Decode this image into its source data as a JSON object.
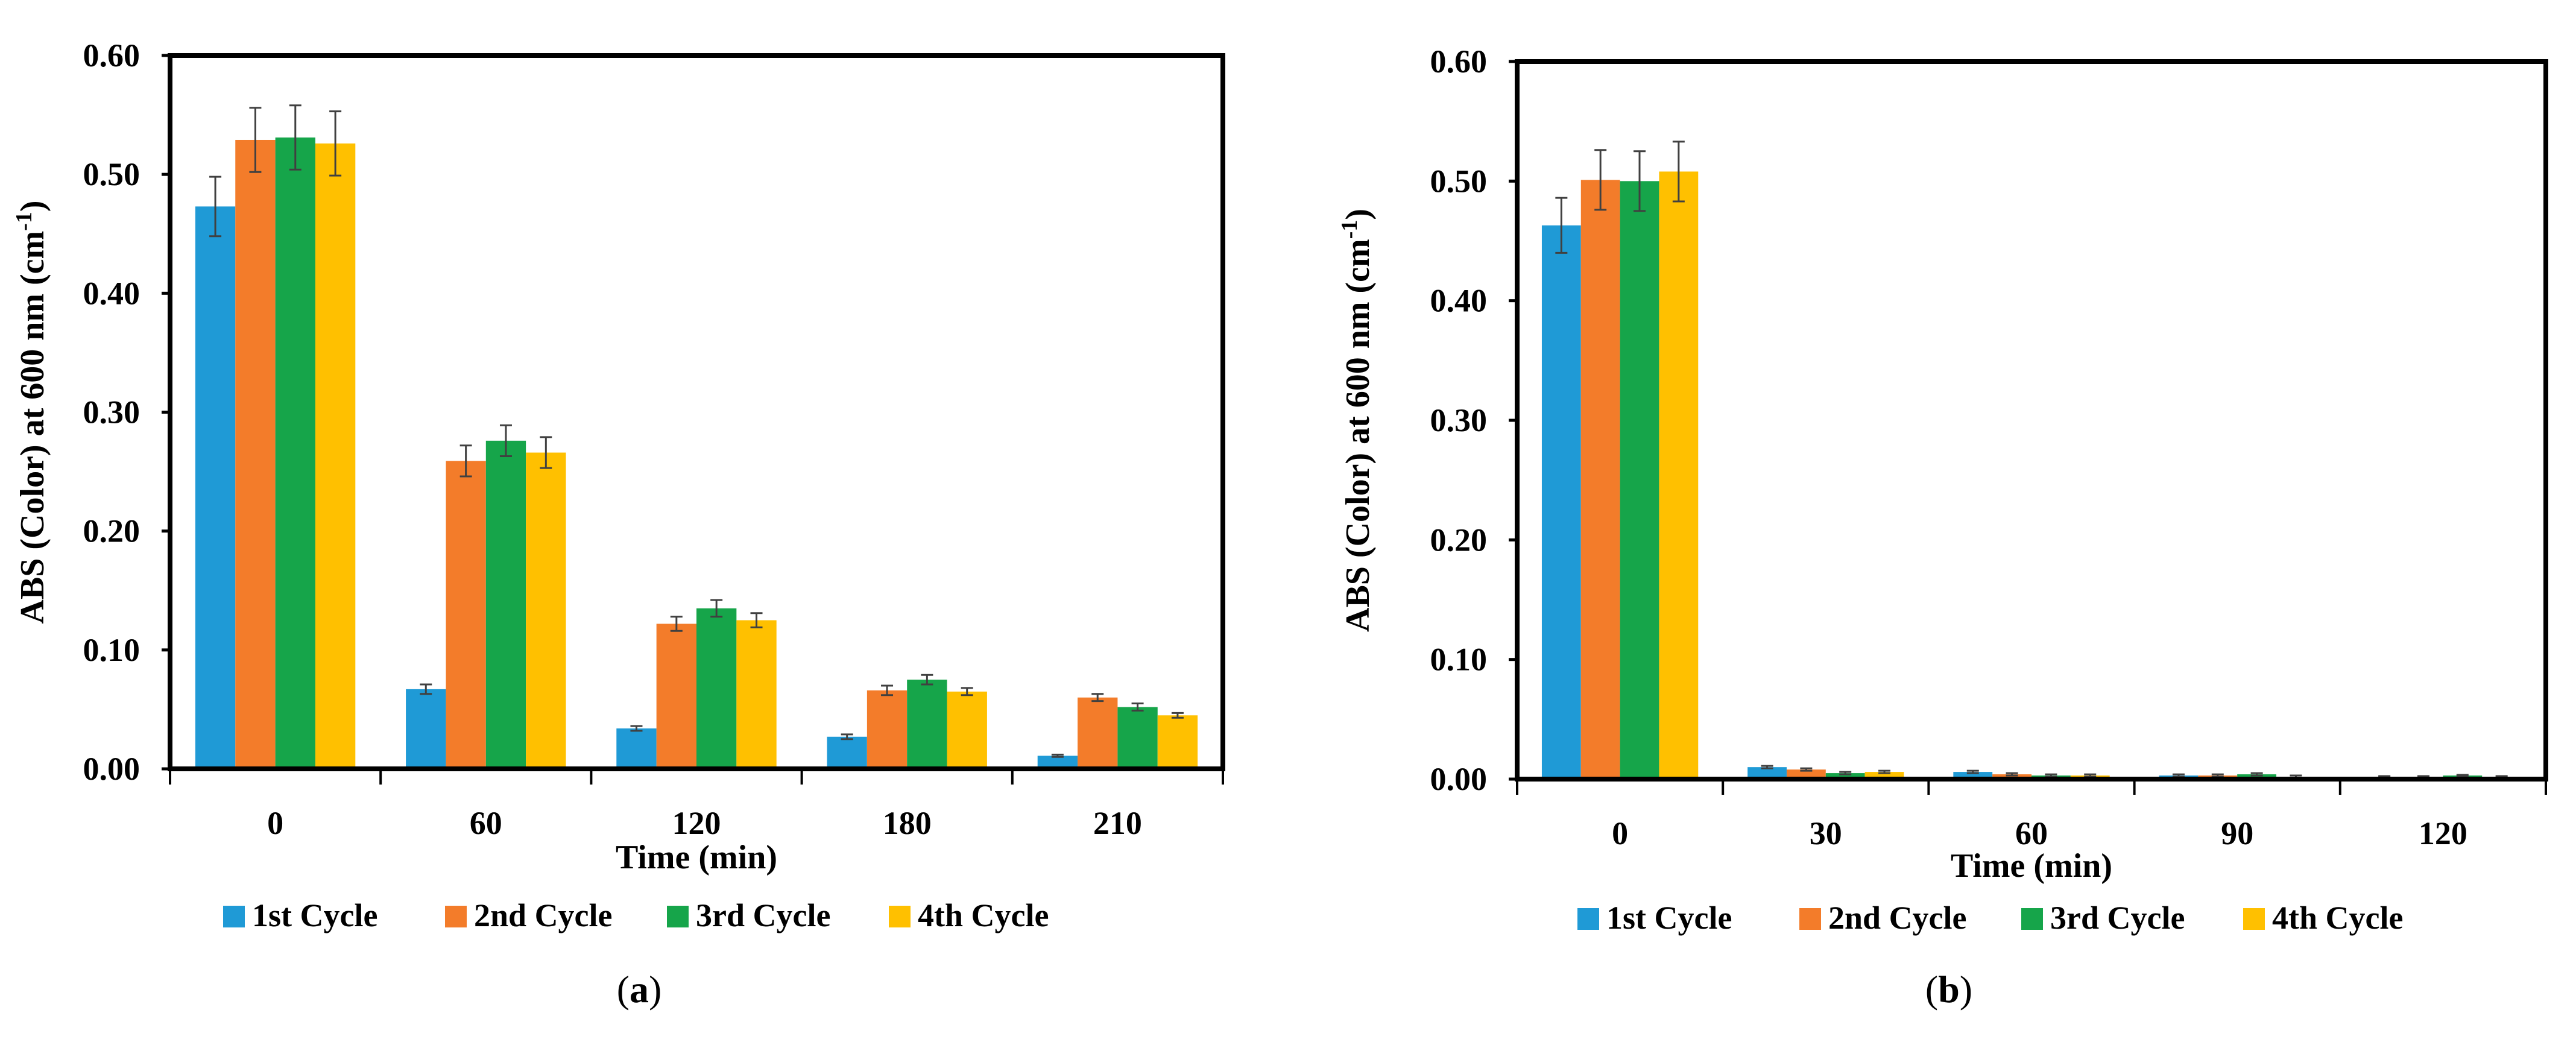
{
  "figure": {
    "panels": [
      {
        "label_prefix": "(",
        "letter": "a",
        "label_suffix": ")"
      },
      {
        "label_prefix": "(",
        "letter": "b",
        "label_suffix": ")"
      }
    ]
  },
  "colors": {
    "series": [
      "#1f9ad6",
      "#f37c2a",
      "#16a54a",
      "#ffc000"
    ],
    "axis": "#000000",
    "errorbar": "#404040"
  },
  "chart_data": [
    {
      "type": "bar",
      "panel": "a",
      "title": "",
      "xlabel": "Time (min)",
      "ylabel": "ABS (Color)  at 600 nm (cm",
      "ylabel_sup": "-1",
      "ylabel_close": ")",
      "ylim": [
        0,
        0.6
      ],
      "yticks": [
        "0.00",
        "0.10",
        "0.20",
        "0.30",
        "0.40",
        "0.50",
        "0.60"
      ],
      "ytick_values": [
        0,
        0.1,
        0.2,
        0.3,
        0.4,
        0.5,
        0.6
      ],
      "categories": [
        "0",
        "60",
        "120",
        "180",
        "210"
      ],
      "legend_position": "bottom",
      "series": [
        {
          "name": "1st Cycle",
          "values": [
            0.473,
            0.067,
            0.034,
            0.027,
            0.011
          ],
          "errors": [
            0.025,
            0.004,
            0.002,
            0.002,
            0.001
          ]
        },
        {
          "name": "2nd Cycle",
          "values": [
            0.529,
            0.259,
            0.122,
            0.066,
            0.06
          ],
          "errors": [
            0.027,
            0.013,
            0.006,
            0.004,
            0.003
          ]
        },
        {
          "name": "3rd Cycle",
          "values": [
            0.531,
            0.276,
            0.135,
            0.075,
            0.052
          ],
          "errors": [
            0.027,
            0.013,
            0.007,
            0.004,
            0.003
          ]
        },
        {
          "name": "4th Cycle",
          "values": [
            0.526,
            0.266,
            0.125,
            0.065,
            0.045
          ],
          "errors": [
            0.027,
            0.013,
            0.006,
            0.003,
            0.002
          ]
        }
      ]
    },
    {
      "type": "bar",
      "panel": "b",
      "title": "",
      "xlabel": "Time (min)",
      "ylabel": "ABS (Color)  at 600 nm (cm",
      "ylabel_sup": "-1",
      "ylabel_close": ")",
      "ylim": [
        0,
        0.6
      ],
      "yticks": [
        "0.00",
        "0.10",
        "0.20",
        "0.30",
        "0.40",
        "0.50",
        "0.60"
      ],
      "ytick_values": [
        0,
        0.1,
        0.2,
        0.3,
        0.4,
        0.5,
        0.6
      ],
      "categories": [
        "0",
        "30",
        "60",
        "90",
        "120"
      ],
      "legend_position": "bottom",
      "series": [
        {
          "name": "1st Cycle",
          "values": [
            0.463,
            0.01,
            0.006,
            0.003,
            0.002
          ],
          "errors": [
            0.023,
            0.001,
            0.001,
            0.001,
            0.0005
          ]
        },
        {
          "name": "2nd Cycle",
          "values": [
            0.501,
            0.008,
            0.004,
            0.003,
            0.002
          ],
          "errors": [
            0.025,
            0.001,
            0.001,
            0.001,
            0.0005
          ]
        },
        {
          "name": "3rd Cycle",
          "values": [
            0.5,
            0.005,
            0.003,
            0.004,
            0.003
          ],
          "errors": [
            0.025,
            0.001,
            0.001,
            0.001,
            0.0005
          ]
        },
        {
          "name": "4th Cycle",
          "values": [
            0.508,
            0.006,
            0.003,
            0.002,
            0.002
          ],
          "errors": [
            0.025,
            0.001,
            0.001,
            0.001,
            0.0005
          ]
        }
      ]
    }
  ]
}
